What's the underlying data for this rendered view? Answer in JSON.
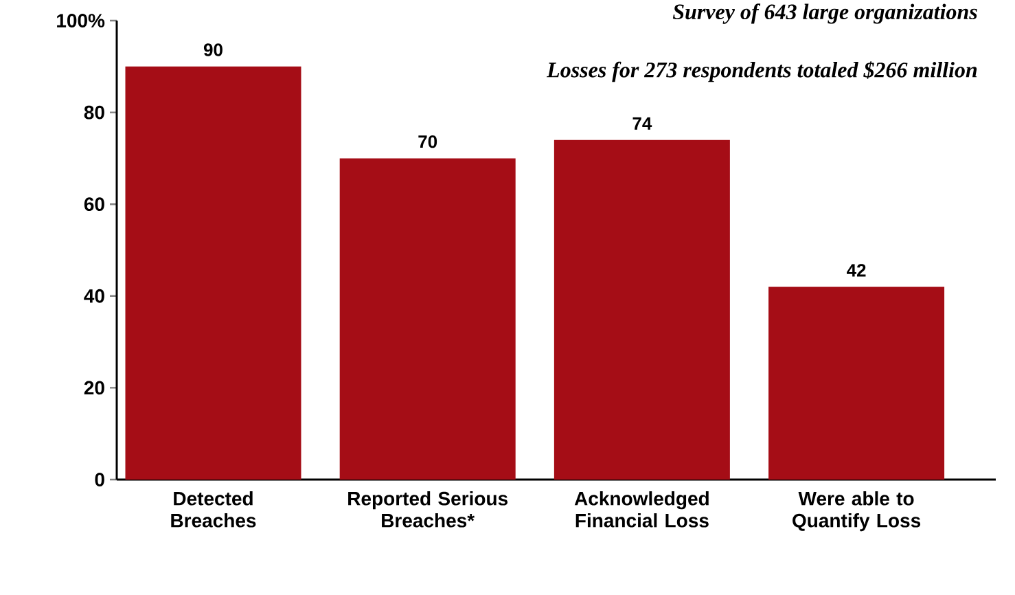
{
  "chart_data": {
    "type": "bar",
    "categories": [
      "Detected Breaches",
      "Reported Serious Breaches*",
      "Acknowledged Financial Loss",
      "Were able to Quantify Loss"
    ],
    "values": [
      90,
      70,
      74,
      42
    ],
    "color": "#a50d16",
    "ylim": [
      0,
      100
    ],
    "yticks": [
      0,
      20,
      40,
      60,
      80,
      {
        "value": 100,
        "label": "100%"
      }
    ],
    "data_labels": true,
    "grid": false,
    "annotations": [
      "Survey of 643 large organizations",
      "Losses for 273 respondents totaled $266 million"
    ]
  }
}
